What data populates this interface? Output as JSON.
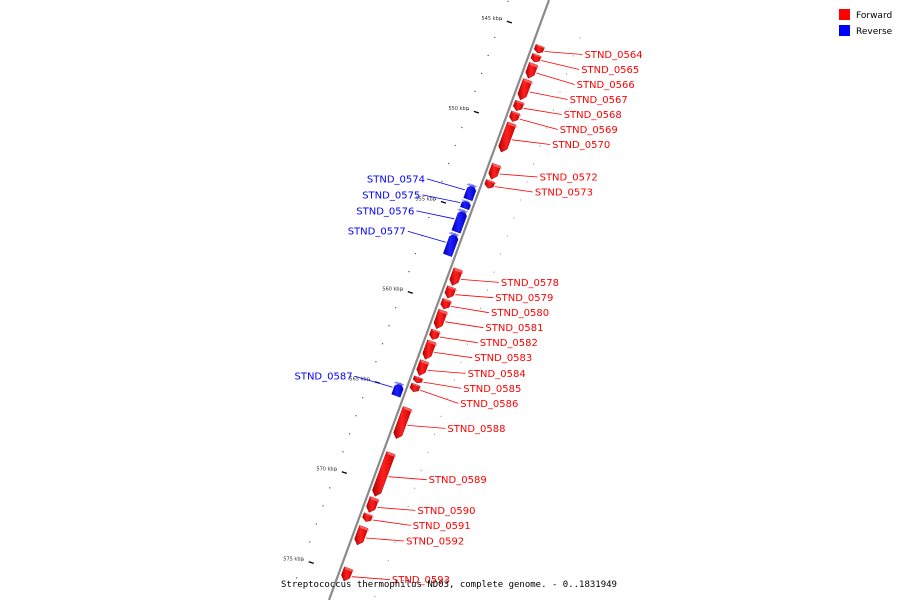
{
  "legend": [
    {
      "label": "Forward",
      "color": "#ff0000"
    },
    {
      "label": "Reverse",
      "color": "#0000ff"
    }
  ],
  "caption": "Streptococcus thermophilus ND03, complete genome. - 0..1831949",
  "colors": {
    "forward": "#ff0000",
    "reverse": "#0000ff",
    "backbone": "#8a8a8a"
  },
  "view": {
    "start_kbp": 543.2,
    "end_kbp": 576.5
  },
  "ticks_kbp": [
    545,
    550,
    555,
    560,
    565,
    570,
    575
  ],
  "genes": [
    {
      "name": "STND_0564",
      "strand": "forward",
      "start_kbp": 545.6,
      "end_kbp": 546.0
    },
    {
      "name": "STND_0565",
      "strand": "forward",
      "start_kbp": 546.1,
      "end_kbp": 546.5
    },
    {
      "name": "STND_0566",
      "strand": "forward",
      "start_kbp": 546.6,
      "end_kbp": 547.4
    },
    {
      "name": "STND_0567",
      "strand": "forward",
      "start_kbp": 547.5,
      "end_kbp": 548.6
    },
    {
      "name": "STND_0568",
      "strand": "forward",
      "start_kbp": 548.7,
      "end_kbp": 549.2
    },
    {
      "name": "STND_0569",
      "strand": "forward",
      "start_kbp": 549.3,
      "end_kbp": 549.8
    },
    {
      "name": "STND_0570",
      "strand": "forward",
      "start_kbp": 549.9,
      "end_kbp": 551.5
    },
    {
      "name": "STND_0572",
      "strand": "forward",
      "start_kbp": 552.2,
      "end_kbp": 553.0
    },
    {
      "name": "STND_0573",
      "strand": "forward",
      "start_kbp": 553.1,
      "end_kbp": 553.5
    },
    {
      "name": "STND_0574",
      "strand": "reverse",
      "start_kbp": 553.6,
      "end_kbp": 554.4
    },
    {
      "name": "STND_0575",
      "strand": "reverse",
      "start_kbp": 554.5,
      "end_kbp": 554.9
    },
    {
      "name": "STND_0576",
      "strand": "reverse",
      "start_kbp": 555.0,
      "end_kbp": 556.2
    },
    {
      "name": "STND_0577",
      "strand": "reverse",
      "start_kbp": 556.3,
      "end_kbp": 557.5
    },
    {
      "name": "STND_0578",
      "strand": "forward",
      "start_kbp": 558.0,
      "end_kbp": 558.9
    },
    {
      "name": "STND_0579",
      "strand": "forward",
      "start_kbp": 559.0,
      "end_kbp": 559.6
    },
    {
      "name": "STND_0580",
      "strand": "forward",
      "start_kbp": 559.7,
      "end_kbp": 560.2
    },
    {
      "name": "STND_0581",
      "strand": "forward",
      "start_kbp": 560.3,
      "end_kbp": 561.3
    },
    {
      "name": "STND_0582",
      "strand": "forward",
      "start_kbp": 561.4,
      "end_kbp": 561.9
    },
    {
      "name": "STND_0583",
      "strand": "forward",
      "start_kbp": 562.0,
      "end_kbp": 563.0
    },
    {
      "name": "STND_0584",
      "strand": "forward",
      "start_kbp": 563.1,
      "end_kbp": 563.9
    },
    {
      "name": "STND_0585",
      "strand": "forward",
      "start_kbp": 564.0,
      "end_kbp": 564.3
    },
    {
      "name": "STND_0586",
      "strand": "forward",
      "start_kbp": 564.4,
      "end_kbp": 564.8
    },
    {
      "name": "STND_0587",
      "strand": "reverse",
      "start_kbp": 564.6,
      "end_kbp": 565.3
    },
    {
      "name": "STND_0588",
      "strand": "forward",
      "start_kbp": 565.7,
      "end_kbp": 567.4
    },
    {
      "name": "STND_0589",
      "strand": "forward",
      "start_kbp": 568.2,
      "end_kbp": 570.6
    },
    {
      "name": "STND_0590",
      "strand": "forward",
      "start_kbp": 570.7,
      "end_kbp": 571.5
    },
    {
      "name": "STND_0591",
      "strand": "forward",
      "start_kbp": 571.6,
      "end_kbp": 572.0
    },
    {
      "name": "STND_0592",
      "strand": "forward",
      "start_kbp": 572.3,
      "end_kbp": 573.3
    },
    {
      "name": "STND_0593",
      "strand": "forward",
      "start_kbp": 574.6,
      "end_kbp": 575.3
    }
  ]
}
